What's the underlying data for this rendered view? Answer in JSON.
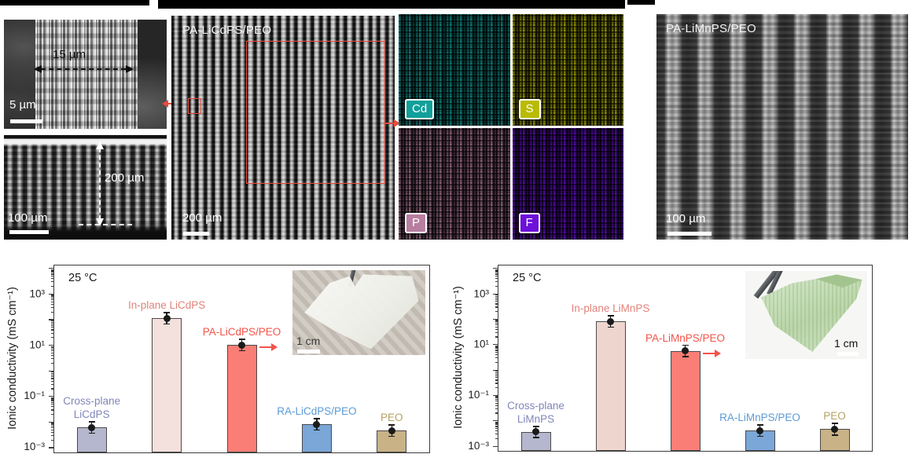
{
  "figure": {
    "sem_closeup": {
      "width_annotation": "15 µm",
      "scale_bar_label": "5 µm"
    },
    "sem_cross_section": {
      "thickness_annotation": "200 µm",
      "scale_bar_label": "100 µm"
    },
    "sem_pa_licdps": {
      "title": "PA-LiCdPS/PEO",
      "scale_bar_label": "200  µm"
    },
    "sem_pa_limnps": {
      "title": "PA-LiMnPS/PEO",
      "scale_bar_label": "100 µm"
    },
    "eds_maps": [
      {
        "element": "Cd",
        "color": "#12a09a"
      },
      {
        "element": "S",
        "color": "#b9bb00"
      },
      {
        "element": "P",
        "color": "#b77e9f"
      },
      {
        "element": "F",
        "color": "#6d10d8"
      }
    ],
    "roi_color": "#e8493c"
  },
  "chart_data": [
    {
      "type": "bar",
      "yscale": "log",
      "annotation": "25 °C",
      "ylabel": "Ionic conductivity (mS cm⁻¹)",
      "ylim": [
        0.001,
        1000
      ],
      "ytick_labels": [
        "10³",
        "10¹",
        "10⁻¹",
        "10⁻³"
      ],
      "ytick_exponents": [
        3,
        1,
        -1,
        -3
      ],
      "plot_log_range": [
        -3.2,
        4.1
      ],
      "categories": [
        "Cross-plane\nLiCdPS",
        "In-plane LiCdPS",
        "PA-LiCdPS/PEO",
        "RA-LiCdPS/PEO",
        "PEO"
      ],
      "values": [
        0.006,
        110,
        10,
        0.008,
        0.0045
      ],
      "bar_colors": [
        "#b5b7ce",
        "#f4e0dc",
        "#fa7e75",
        "#7aa6d8",
        "#c8b286"
      ],
      "label_colors": [
        "#8186ba",
        "#e0837b",
        "#f4544a",
        "#5b9bd5",
        "#b7a165"
      ],
      "error_bars_visible": true,
      "arrow_bar_index": 2,
      "inset_photo": "white PA-LiCdPS/PEO membrane",
      "inset_scale_bar": "1 cm"
    },
    {
      "type": "bar",
      "yscale": "log",
      "annotation": "25 °C",
      "ylabel": "Ionic conductivity (mS cm⁻¹)",
      "ylim": [
        0.001,
        1000
      ],
      "ytick_labels": [
        "10³",
        "10¹",
        "10⁻¹",
        "10⁻³"
      ],
      "ytick_exponents": [
        3,
        1,
        -1,
        -3
      ],
      "plot_log_range": [
        -3.2,
        4.1
      ],
      "categories": [
        "Cross-plane\nLiMnPS",
        "In-plane LiMnPS",
        "PA-LiMnPS/PEO",
        "RA-LiMnPS/PEO",
        "PEO"
      ],
      "values": [
        0.0035,
        80,
        5.5,
        0.004,
        0.0045
      ],
      "bar_colors": [
        "#b5b7ce",
        "#eed6cf",
        "#fa7e75",
        "#7aa6d8",
        "#c8b286"
      ],
      "label_colors": [
        "#8186ba",
        "#e0837b",
        "#f4544a",
        "#5b9bd5",
        "#b7a165"
      ],
      "error_bars_visible": true,
      "arrow_bar_index": 2,
      "inset_photo": "green PA-LiMnPS/PEO membrane held by tweezers",
      "inset_scale_bar": "1 cm"
    }
  ]
}
